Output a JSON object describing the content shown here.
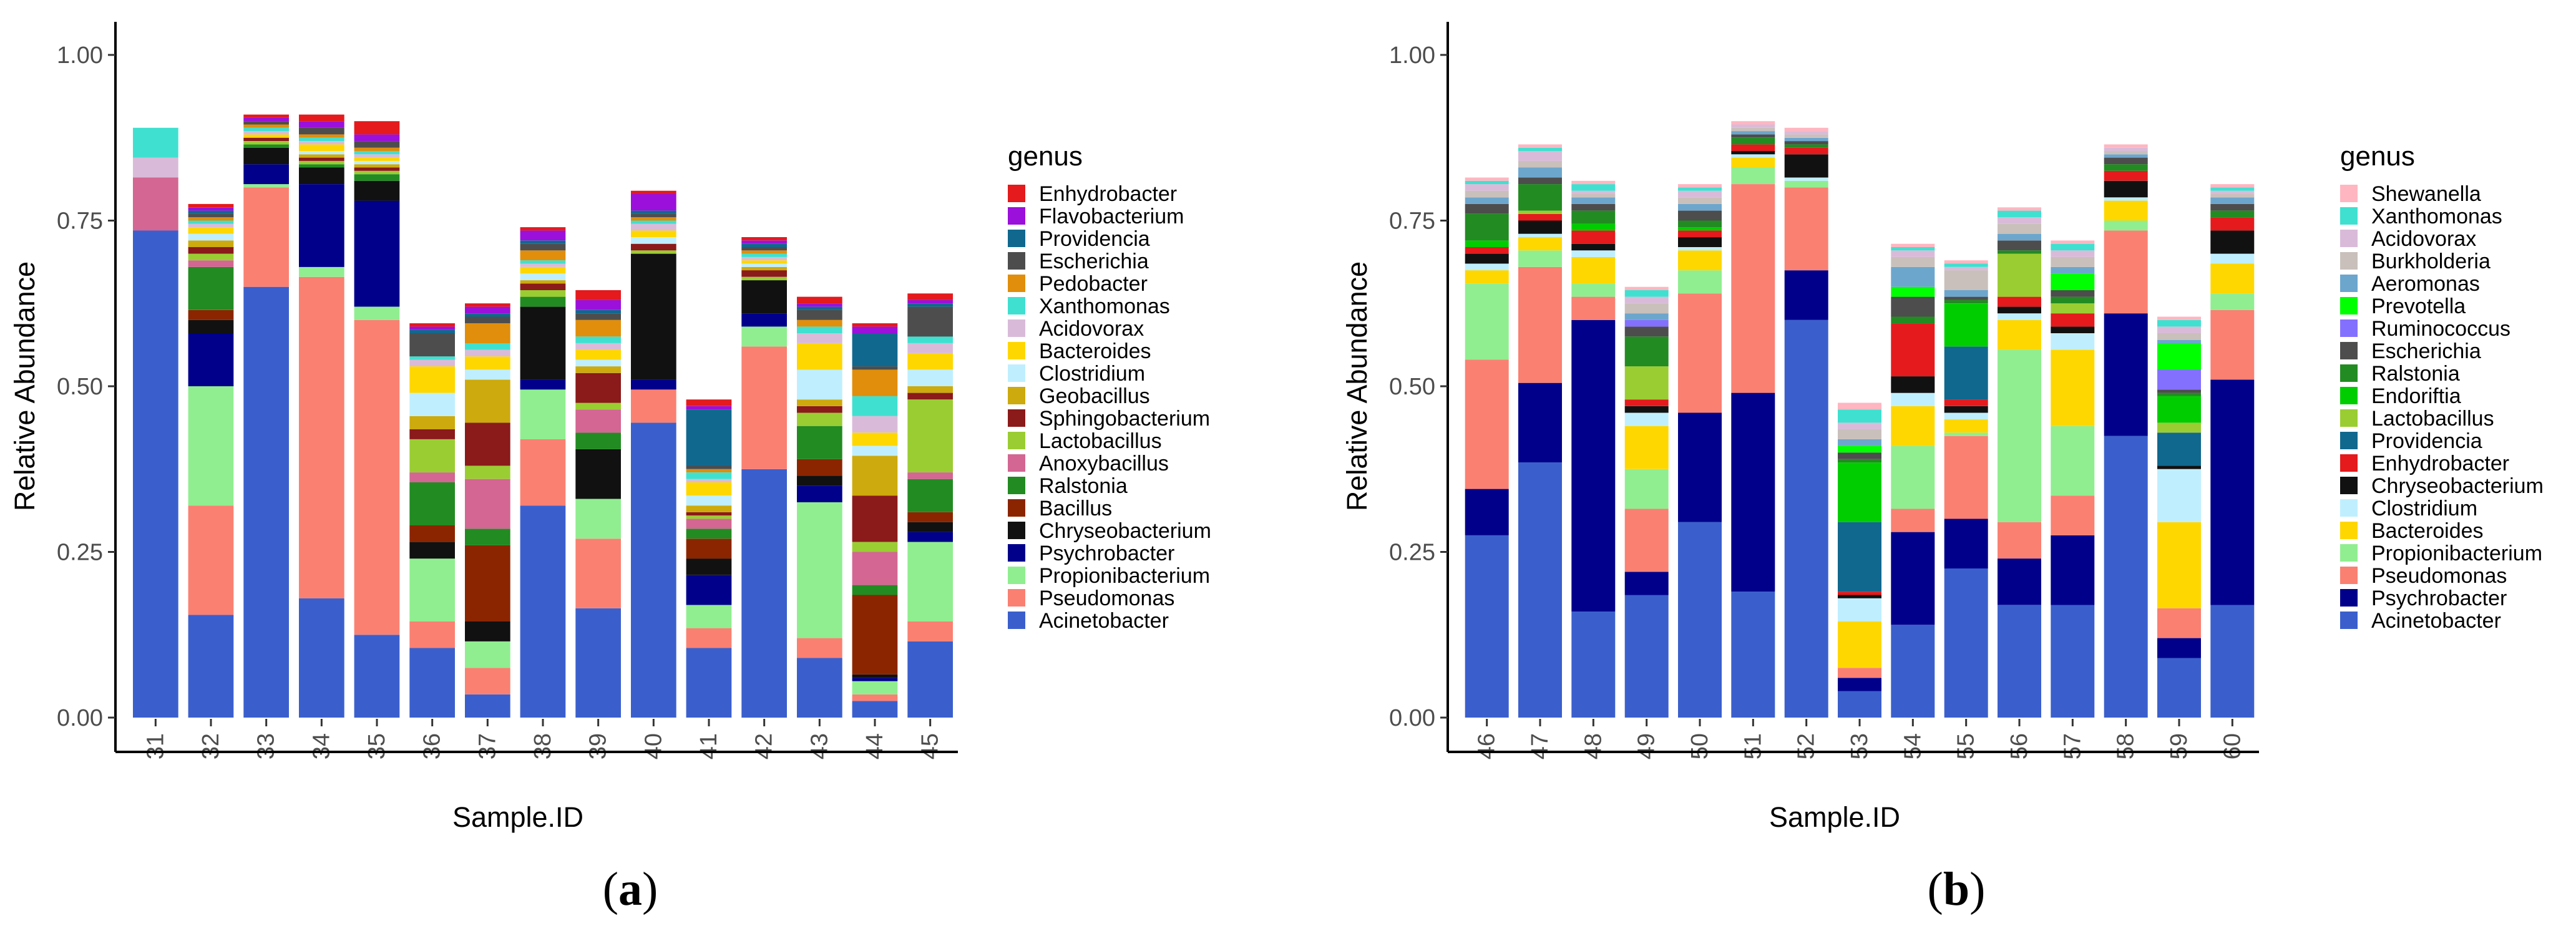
{
  "chart_data": [
    {
      "type": "bar",
      "stacked": true,
      "panel_label": "a",
      "xlabel": "Sample.ID",
      "ylabel": "Relative Abundance",
      "ylim": [
        0,
        1.05
      ],
      "yticks": [
        "0.00",
        "0.25",
        "0.50",
        "0.75",
        "1.00"
      ],
      "ytick_values": [
        0,
        0.25,
        0.5,
        0.75,
        1.0
      ],
      "legend_title": "genus",
      "legend_position": "right",
      "categories": [
        "31",
        "32",
        "33",
        "34",
        "35",
        "36",
        "37",
        "38",
        "39",
        "40",
        "41",
        "42",
        "43",
        "44",
        "45"
      ],
      "genus_order": [
        "Enhydrobacter",
        "Flavobacterium",
        "Providencia",
        "Escherichia",
        "Pedobacter",
        "Xanthomonas",
        "Acidovorax",
        "Bacteroides",
        "Clostridium",
        "Geobacillus",
        "Sphingobacterium",
        "Lactobacillus",
        "Anoxybacillus",
        "Ralstonia",
        "Bacillus",
        "Chryseobacterium",
        "Psychrobacter",
        "Propionibacterium",
        "Pseudomonas",
        "Acinetobacter"
      ],
      "colors": {
        "Enhydrobacter": "#E41A1C",
        "Flavobacterium": "#9B10DB",
        "Providencia": "#10688E",
        "Escherichia": "#4D4D4D",
        "Pedobacter": "#E08E0B",
        "Xanthomonas": "#40E0D0",
        "Acidovorax": "#D9BBD9",
        "Bacteroides": "#FFD700",
        "Clostridium": "#BFEFFF",
        "Geobacillus": "#CDAA0D",
        "Sphingobacterium": "#8B1A1A",
        "Lactobacillus": "#9ACD32",
        "Anoxybacillus": "#D36692",
        "Ralstonia": "#228B22",
        "Bacillus": "#8B2500",
        "Chryseobacterium": "#111111",
        "Psychrobacter": "#00008B",
        "Propionibacterium": "#90EE90",
        "Pseudomonas": "#FA8072",
        "Acinetobacter": "#3A5FCD"
      },
      "series": [
        {
          "name": "Acinetobacter",
          "values": [
            0.735,
            0.155,
            0.65,
            0.18,
            0.125,
            0.105,
            0.035,
            0.32,
            0.165,
            0.445,
            0.105,
            0.375,
            0.09,
            0.025,
            0.115
          ]
        },
        {
          "name": "Pseudomonas",
          "values": [
            0,
            0.165,
            0.15,
            0.485,
            0.475,
            0.04,
            0.04,
            0.1,
            0.105,
            0.05,
            0.03,
            0.185,
            0.03,
            0.01,
            0.03
          ]
        },
        {
          "name": "Propionibacterium",
          "values": [
            0,
            0.18,
            0.005,
            0.015,
            0.02,
            0.095,
            0.04,
            0.075,
            0.06,
            0,
            0.035,
            0.03,
            0.205,
            0.02,
            0.12
          ]
        },
        {
          "name": "Psychrobacter",
          "values": [
            0,
            0.08,
            0.03,
            0.125,
            0.16,
            0,
            0,
            0.015,
            0,
            0.015,
            0.045,
            0.02,
            0.025,
            0.005,
            0.015
          ]
        },
        {
          "name": "Chryseobacterium",
          "values": [
            0,
            0.02,
            0.025,
            0.025,
            0.03,
            0.025,
            0.03,
            0.11,
            0.075,
            0.19,
            0.025,
            0.05,
            0.015,
            0.005,
            0.015
          ]
        },
        {
          "name": "Bacillus",
          "values": [
            0,
            0.015,
            0,
            0,
            0,
            0.025,
            0.115,
            0,
            0,
            0,
            0.03,
            0,
            0.025,
            0.12,
            0.015
          ]
        },
        {
          "name": "Ralstonia",
          "values": [
            0,
            0.065,
            0.005,
            0.005,
            0.01,
            0.065,
            0.025,
            0.015,
            0.025,
            0,
            0.015,
            0,
            0.05,
            0.015,
            0.05
          ]
        },
        {
          "name": "Anoxybacillus",
          "values": [
            0.08,
            0.01,
            0,
            0,
            0,
            0.015,
            0.075,
            0,
            0.035,
            0,
            0.015,
            0,
            0,
            0.05,
            0.01
          ]
        },
        {
          "name": "Lactobacillus",
          "values": [
            0,
            0.01,
            0.005,
            0.005,
            0.005,
            0.05,
            0.02,
            0.01,
            0.01,
            0.005,
            0.005,
            0.005,
            0.02,
            0.015,
            0.11
          ]
        },
        {
          "name": "Sphingobacterium",
          "values": [
            0,
            0.01,
            0.005,
            0.005,
            0.005,
            0.015,
            0.065,
            0.01,
            0.045,
            0.01,
            0.005,
            0.01,
            0.01,
            0.07,
            0.01
          ]
        },
        {
          "name": "Geobacillus",
          "values": [
            0,
            0.01,
            0,
            0.005,
            0.005,
            0.02,
            0.065,
            0.005,
            0.01,
            0,
            0.01,
            0.005,
            0.01,
            0.06,
            0.01
          ]
        },
        {
          "name": "Clostridium",
          "values": [
            0,
            0.01,
            0,
            0.005,
            0.005,
            0.035,
            0.015,
            0.01,
            0.01,
            0.01,
            0.015,
            0.005,
            0.045,
            0.015,
            0.025
          ]
        },
        {
          "name": "Bacteroides",
          "values": [
            0,
            0.01,
            0.005,
            0.01,
            0.005,
            0.04,
            0.02,
            0.01,
            0.015,
            0.01,
            0.02,
            0.005,
            0.04,
            0.02,
            0.025
          ]
        },
        {
          "name": "Acidovorax",
          "values": [
            0.03,
            0.005,
            0.005,
            0.005,
            0.005,
            0.01,
            0.01,
            0.005,
            0.01,
            0.01,
            0.005,
            0.005,
            0.015,
            0.025,
            0.015
          ]
        },
        {
          "name": "Xanthomonas",
          "values": [
            0.045,
            0.005,
            0.005,
            0.005,
            0.005,
            0.005,
            0.01,
            0.005,
            0.01,
            0.005,
            0.01,
            0.005,
            0.01,
            0.03,
            0.01
          ]
        },
        {
          "name": "Pedobacter",
          "values": [
            0,
            0.005,
            0.005,
            0.005,
            0.005,
            0,
            0.03,
            0.015,
            0.025,
            0.005,
            0.005,
            0.005,
            0.01,
            0.04,
            0
          ]
        },
        {
          "name": "Escherichia",
          "values": [
            0,
            0.005,
            0.005,
            0.01,
            0.01,
            0.035,
            0.01,
            0.01,
            0.01,
            0.005,
            0.005,
            0.005,
            0.015,
            0.005,
            0.045
          ]
        },
        {
          "name": "Providencia",
          "values": [
            0,
            0.005,
            0,
            0,
            0,
            0.005,
            0.005,
            0.005,
            0.005,
            0.005,
            0.085,
            0.005,
            0.005,
            0.05,
            0.005
          ]
        },
        {
          "name": "Flavobacterium",
          "values": [
            0,
            0.005,
            0.005,
            0.01,
            0.01,
            0.005,
            0.01,
            0.015,
            0.015,
            0.025,
            0.005,
            0.005,
            0.005,
            0.01,
            0.005
          ]
        },
        {
          "name": "Enhydrobacter",
          "values": [
            0,
            0.005,
            0.005,
            0.01,
            0.02,
            0.005,
            0.005,
            0.005,
            0.015,
            0.005,
            0.01,
            0.005,
            0.01,
            0.005,
            0.01
          ]
        }
      ]
    },
    {
      "type": "bar",
      "stacked": true,
      "panel_label": "b",
      "xlabel": "Sample.ID",
      "ylabel": "Relative Abundance",
      "ylim": [
        0,
        1.05
      ],
      "yticks": [
        "0.00",
        "0.25",
        "0.50",
        "0.75",
        "1.00"
      ],
      "ytick_values": [
        0,
        0.25,
        0.5,
        0.75,
        1.0
      ],
      "legend_title": "genus",
      "legend_position": "right",
      "categories": [
        "46",
        "47",
        "48",
        "49",
        "50",
        "51",
        "52",
        "53",
        "54",
        "55",
        "56",
        "57",
        "58",
        "59",
        "60"
      ],
      "genus_order": [
        "Shewanella",
        "Xanthomonas",
        "Acidovorax",
        "Burkholderia",
        "Aeromonas",
        "Prevotella",
        "Ruminococcus",
        "Escherichia",
        "Ralstonia",
        "Endoriftia",
        "Lactobacillus",
        "Providencia",
        "Enhydrobacter",
        "Chryseobacterium",
        "Clostridium",
        "Bacteroides",
        "Propionibacterium",
        "Pseudomonas",
        "Psychrobacter",
        "Acinetobacter"
      ],
      "colors": {
        "Shewanella": "#FFB6C1",
        "Xanthomonas": "#40E0D0",
        "Acidovorax": "#D9BBD9",
        "Burkholderia": "#C9C0BB",
        "Aeromonas": "#6CA6CD",
        "Prevotella": "#00FF00",
        "Ruminococcus": "#8470FF",
        "Escherichia": "#4D4D4D",
        "Ralstonia": "#228B22",
        "Endoriftia": "#00CD00",
        "Lactobacillus": "#9ACD32",
        "Providencia": "#10688E",
        "Enhydrobacter": "#E41A1C",
        "Chryseobacterium": "#111111",
        "Clostridium": "#BFEFFF",
        "Bacteroides": "#FFD700",
        "Propionibacterium": "#90EE90",
        "Pseudomonas": "#FA8072",
        "Psychrobacter": "#00008B",
        "Acinetobacter": "#3A5FCD"
      },
      "series": [
        {
          "name": "Acinetobacter",
          "values": [
            0.275,
            0.385,
            0.16,
            0.185,
            0.295,
            0.19,
            0.6,
            0.04,
            0.14,
            0.225,
            0.17,
            0.17,
            0.425,
            0.09,
            0.17
          ]
        },
        {
          "name": "Psychrobacter",
          "values": [
            0.07,
            0.12,
            0.44,
            0.035,
            0.165,
            0.3,
            0.075,
            0.02,
            0.14,
            0.075,
            0.07,
            0.105,
            0.185,
            0.03,
            0.34
          ]
        },
        {
          "name": "Pseudomonas",
          "values": [
            0.195,
            0.175,
            0.035,
            0.095,
            0.18,
            0.315,
            0.125,
            0.015,
            0.035,
            0.125,
            0.055,
            0.06,
            0.125,
            0.045,
            0.105
          ]
        },
        {
          "name": "Propionibacterium",
          "values": [
            0.115,
            0.025,
            0.02,
            0.06,
            0.035,
            0.025,
            0.01,
            0,
            0.095,
            0.005,
            0.26,
            0.105,
            0.015,
            0,
            0.025
          ]
        },
        {
          "name": "Bacteroides",
          "values": [
            0.02,
            0.02,
            0.04,
            0.065,
            0.03,
            0.015,
            0,
            0.07,
            0.06,
            0.02,
            0.045,
            0.115,
            0.03,
            0.13,
            0.045
          ]
        },
        {
          "name": "Clostridium",
          "values": [
            0.01,
            0.005,
            0.01,
            0.02,
            0.005,
            0.005,
            0.005,
            0.035,
            0.02,
            0.01,
            0.01,
            0.025,
            0.005,
            0.08,
            0.015
          ]
        },
        {
          "name": "Chryseobacterium",
          "values": [
            0.015,
            0.02,
            0.01,
            0.01,
            0.015,
            0.005,
            0.035,
            0.005,
            0.025,
            0.01,
            0.01,
            0.01,
            0.025,
            0.005,
            0.035
          ]
        },
        {
          "name": "Enhydrobacter",
          "values": [
            0.01,
            0.01,
            0.02,
            0.01,
            0.01,
            0.01,
            0.01,
            0.005,
            0.08,
            0.01,
            0.015,
            0.02,
            0.015,
            0,
            0.02
          ]
        },
        {
          "name": "Providencia",
          "values": [
            0,
            0,
            0,
            0,
            0,
            0,
            0,
            0.105,
            0,
            0.08,
            0,
            0,
            0,
            0.05,
            0
          ]
        },
        {
          "name": "Lactobacillus",
          "values": [
            0,
            0.005,
            0,
            0.05,
            0,
            0,
            0,
            0,
            0,
            0,
            0.065,
            0.015,
            0,
            0.015,
            0
          ]
        },
        {
          "name": "Endoriftia",
          "values": [
            0.01,
            0,
            0.01,
            0,
            0.005,
            0,
            0,
            0.09,
            0,
            0.065,
            0,
            0,
            0,
            0.04,
            0
          ]
        },
        {
          "name": "Ralstonia",
          "values": [
            0.04,
            0.04,
            0.02,
            0.045,
            0.01,
            0.01,
            0.005,
            0.005,
            0.01,
            0.005,
            0.005,
            0.01,
            0.01,
            0.005,
            0.01
          ]
        },
        {
          "name": "Escherichia",
          "values": [
            0.015,
            0.01,
            0.01,
            0.015,
            0.015,
            0.005,
            0.005,
            0.01,
            0.03,
            0.005,
            0.015,
            0.01,
            0.01,
            0.005,
            0.01
          ]
        },
        {
          "name": "Ruminococcus",
          "values": [
            0,
            0,
            0,
            0.01,
            0,
            0,
            0,
            0,
            0,
            0,
            0,
            0,
            0,
            0.03,
            0
          ]
        },
        {
          "name": "Prevotella",
          "values": [
            0,
            0,
            0,
            0,
            0,
            0,
            0,
            0.01,
            0.015,
            0,
            0,
            0.025,
            0,
            0.04,
            0
          ]
        },
        {
          "name": "Aeromonas",
          "values": [
            0.01,
            0.015,
            0.01,
            0.01,
            0.01,
            0.005,
            0.005,
            0.01,
            0.03,
            0.01,
            0.01,
            0.01,
            0.005,
            0.005,
            0.01
          ]
        },
        {
          "name": "Burkholderia",
          "values": [
            0.01,
            0.01,
            0.005,
            0.015,
            0.01,
            0.005,
            0.005,
            0.015,
            0.015,
            0.03,
            0.015,
            0.015,
            0.005,
            0.01,
            0.005
          ]
        },
        {
          "name": "Acidovorax",
          "values": [
            0.01,
            0.015,
            0.005,
            0.01,
            0.01,
            0.005,
            0.005,
            0.01,
            0.01,
            0.005,
            0.01,
            0.01,
            0.005,
            0.01,
            0.005
          ]
        },
        {
          "name": "Xanthomonas",
          "values": [
            0.005,
            0.005,
            0.01,
            0.01,
            0.005,
            0,
            0,
            0.02,
            0.005,
            0.005,
            0.01,
            0.01,
            0,
            0.01,
            0.005
          ]
        },
        {
          "name": "Shewanella",
          "values": [
            0.005,
            0.005,
            0.005,
            0.005,
            0.005,
            0.005,
            0.005,
            0.01,
            0.005,
            0.005,
            0.005,
            0.005,
            0.005,
            0.005,
            0.005
          ]
        }
      ]
    }
  ]
}
